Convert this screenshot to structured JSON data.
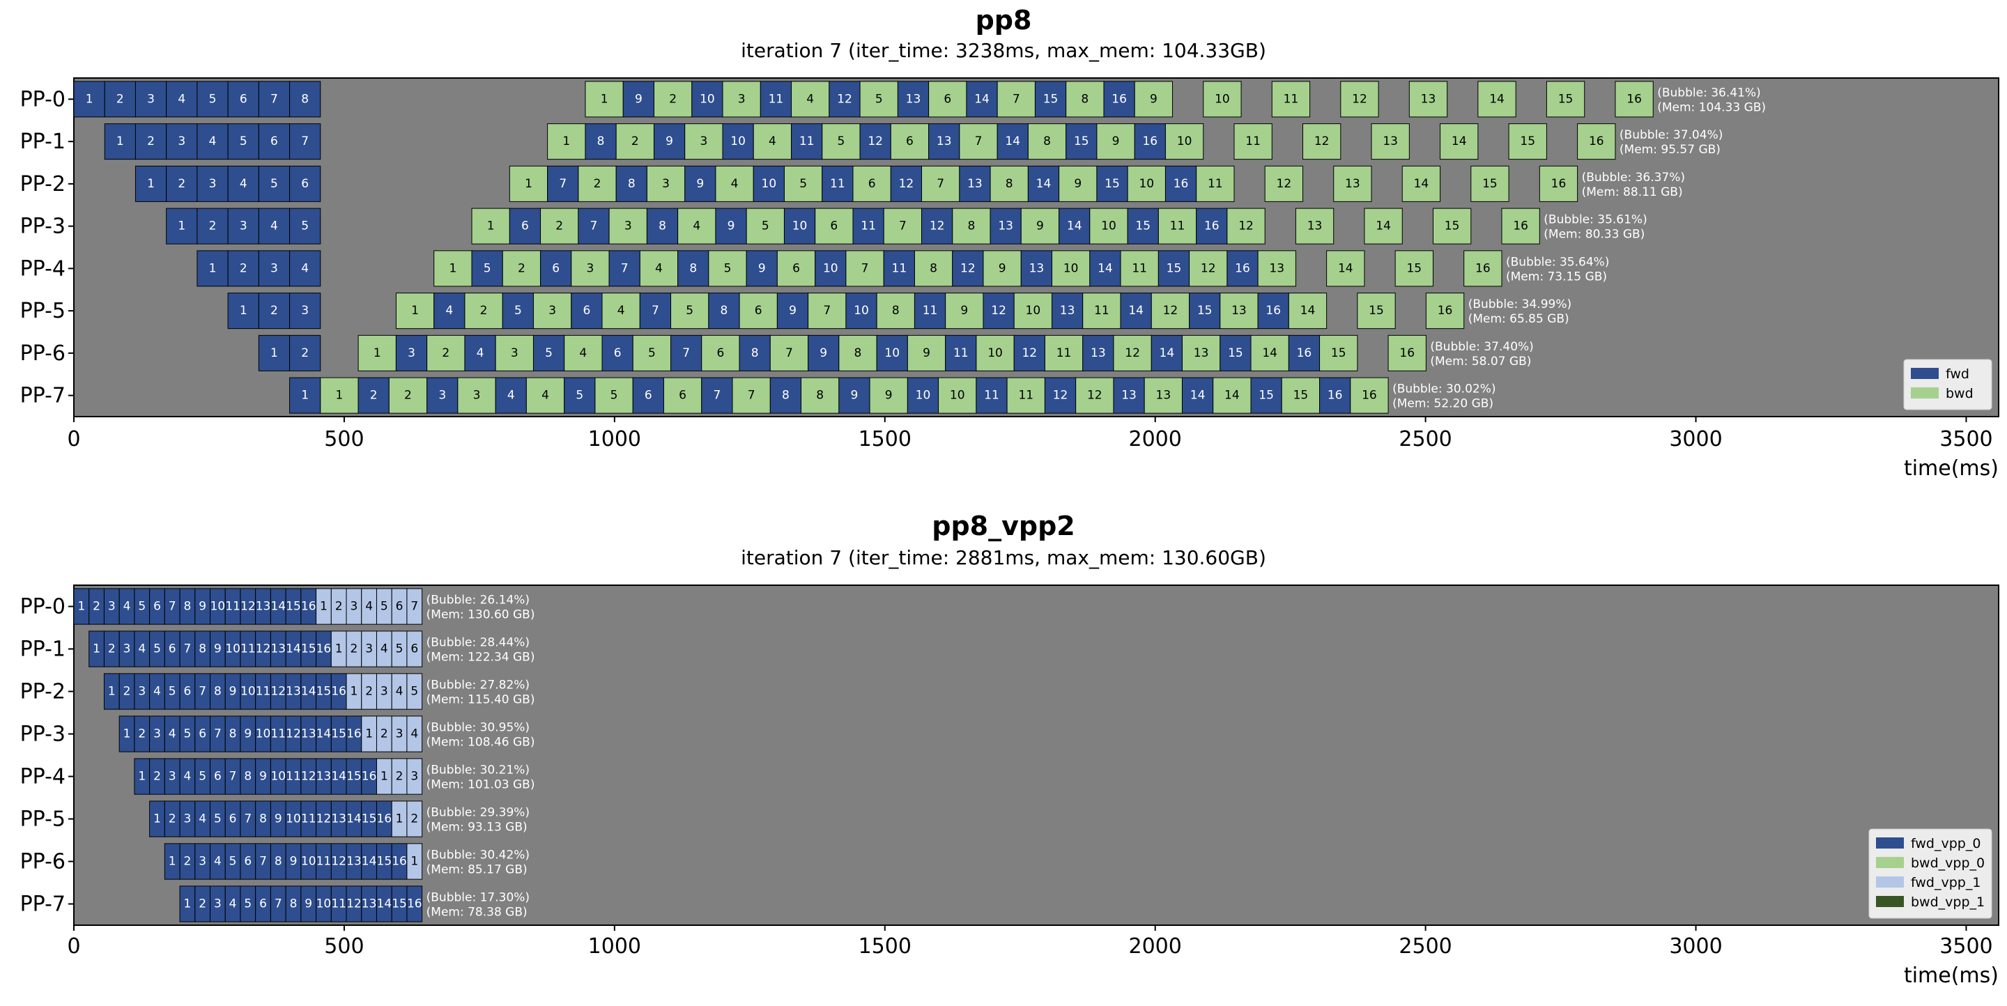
{
  "chart_data": [
    {
      "type": "gantt",
      "title": "pp8",
      "subtitle": "iteration 7 (iter_time: 3238ms, max_mem: 104.33GB)",
      "xlabel": "time(ms)",
      "xlim": [
        0,
        3560
      ],
      "xticks": [
        0,
        500,
        1000,
        1500,
        2000,
        2500,
        3000,
        3500
      ],
      "rows": [
        "PP-0",
        "PP-1",
        "PP-2",
        "PP-3",
        "PP-4",
        "PP-5",
        "PP-6",
        "PP-7"
      ],
      "fwd_ms": 57,
      "bwd_ms": 70,
      "legend": [
        {
          "name": "fwd",
          "color": "#2e4e8f"
        },
        {
          "name": "bwd",
          "color": "#a5d08e"
        }
      ],
      "annotations": [
        {
          "bubble": "(Bubble: 36.41%)",
          "mem": "(Mem: 104.33 GB)"
        },
        {
          "bubble": "(Bubble: 37.04%)",
          "mem": "(Mem: 95.57 GB)"
        },
        {
          "bubble": "(Bubble: 36.37%)",
          "mem": "(Mem: 88.11 GB)"
        },
        {
          "bubble": "(Bubble: 35.61%)",
          "mem": "(Mem: 80.33 GB)"
        },
        {
          "bubble": "(Bubble: 35.64%)",
          "mem": "(Mem: 73.15 GB)"
        },
        {
          "bubble": "(Bubble: 34.99%)",
          "mem": "(Mem: 65.85 GB)"
        },
        {
          "bubble": "(Bubble: 37.40%)",
          "mem": "(Mem: 58.07 GB)"
        },
        {
          "bubble": "(Bubble: 30.02%)",
          "mem": "(Mem: 52.20 GB)"
        }
      ]
    },
    {
      "type": "gantt",
      "title": "pp8_vpp2",
      "subtitle": "iteration 7 (iter_time: 2881ms, max_mem: 130.60GB)",
      "xlabel": "time(ms)",
      "xlim": [
        0,
        3560
      ],
      "xticks": [
        0,
        500,
        1000,
        1500,
        2000,
        2500,
        3000,
        3500
      ],
      "rows": [
        "PP-0",
        "PP-1",
        "PP-2",
        "PP-3",
        "PP-4",
        "PP-5",
        "PP-6",
        "PP-7"
      ],
      "fwd_ms": 28,
      "bwd_ms": 35,
      "legend": [
        {
          "name": "fwd_vpp_0",
          "color": "#2e4e8f"
        },
        {
          "name": "bwd_vpp_0",
          "color": "#a5d08e"
        },
        {
          "name": "fwd_vpp_1",
          "color": "#b3c6e7"
        },
        {
          "name": "bwd_vpp_1",
          "color": "#375623"
        }
      ],
      "annotations": [
        {
          "bubble": "(Bubble: 26.14%)",
          "mem": "(Mem: 130.60 GB)"
        },
        {
          "bubble": "(Bubble: 28.44%)",
          "mem": "(Mem: 122.34 GB)"
        },
        {
          "bubble": "(Bubble: 27.82%)",
          "mem": "(Mem: 115.40 GB)"
        },
        {
          "bubble": "(Bubble: 30.95%)",
          "mem": "(Mem: 108.46 GB)"
        },
        {
          "bubble": "(Bubble: 30.21%)",
          "mem": "(Mem: 101.03 GB)"
        },
        {
          "bubble": "(Bubble: 29.39%)",
          "mem": "(Mem: 93.13 GB)"
        },
        {
          "bubble": "(Bubble: 30.42%)",
          "mem": "(Mem: 85.17 GB)"
        },
        {
          "bubble": "(Bubble: 17.30%)",
          "mem": "(Mem: 78.38 GB)"
        }
      ]
    }
  ]
}
